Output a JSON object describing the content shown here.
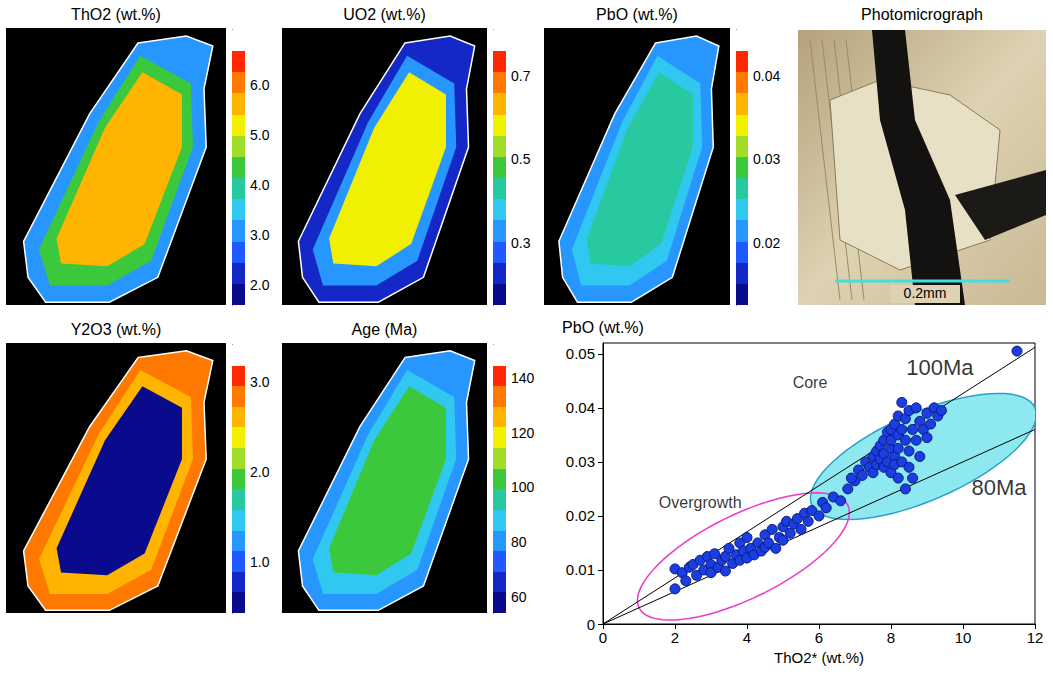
{
  "chart_data": [
    {
      "type": "map",
      "title": "ThO2 (wt.%)",
      "range": [
        1.6,
        7.1
      ],
      "ticks": [
        {
          "value": 2,
          "label": "2.0"
        },
        {
          "value": 3,
          "label": "3.0"
        },
        {
          "value": 4,
          "label": "4.0"
        },
        {
          "value": 5,
          "label": "5.0"
        },
        {
          "value": 6,
          "label": "6.0"
        }
      ],
      "zones": [
        3.0,
        4.2,
        5.6
      ]
    },
    {
      "type": "map",
      "title": "UO2 (wt.%)",
      "range": [
        0.15,
        0.81
      ],
      "ticks": [
        0.3,
        0.5,
        0.7
      ],
      "zones": [
        0.22,
        0.33,
        0.6
      ]
    },
    {
      "type": "map",
      "title": "PbO (wt.%)",
      "range": [
        0.0125,
        0.0455
      ],
      "ticks": [
        0.02,
        0.03,
        0.04
      ],
      "zones": [
        0.021,
        0.024,
        0.027
      ]
    },
    {
      "type": "image",
      "title": "Photomicrograph",
      "scale_label": "0.2mm"
    },
    {
      "type": "map",
      "title": "Y2O3 (wt.%)",
      "range": [
        0.43,
        3.41
      ],
      "ticks": [
        {
          "value": 1,
          "label": "1.0"
        },
        {
          "value": 2,
          "label": "2.0"
        },
        {
          "value": 3,
          "label": "3.0"
        }
      ],
      "zones": [
        2.8,
        2.6,
        0.6
      ]
    },
    {
      "type": "map",
      "title": "Age (Ma)",
      "range": [
        54,
        152
      ],
      "ticks": [
        60,
        80,
        100,
        120,
        140
      ],
      "zones": [
        80,
        90,
        105
      ]
    },
    {
      "type": "scatter",
      "xlabel": "ThO2* (wt.%)",
      "ylabel": "PbO (wt.%)",
      "xlim": [
        0,
        12
      ],
      "xticks": [
        0,
        2,
        4,
        6,
        8,
        10,
        12
      ],
      "ylim": [
        0,
        0.052
      ],
      "yticks": [
        0,
        0.01,
        0.02,
        0.03,
        0.04,
        0.05
      ],
      "grid": false,
      "series": [
        {
          "color": "#1a3ee0",
          "marker": "circle",
          "values": [
            [
              2.0,
              0.0102
            ],
            [
              2.0,
              0.0065
            ],
            [
              2.2,
              0.0095
            ],
            [
              2.3,
              0.008
            ],
            [
              2.4,
              0.0105
            ],
            [
              2.5,
              0.011
            ],
            [
              2.6,
              0.009
            ],
            [
              2.7,
              0.0118
            ],
            [
              2.8,
              0.01
            ],
            [
              2.9,
              0.0125
            ],
            [
              3.0,
              0.011
            ],
            [
              3.0,
              0.0095
            ],
            [
              3.1,
              0.013
            ],
            [
              3.2,
              0.0105
            ],
            [
              3.3,
              0.0118
            ],
            [
              3.4,
              0.0125
            ],
            [
              3.4,
              0.0098
            ],
            [
              3.5,
              0.014
            ],
            [
              3.6,
              0.0112
            ],
            [
              3.7,
              0.0128
            ],
            [
              3.8,
              0.015
            ],
            [
              3.8,
              0.0118
            ],
            [
              3.9,
              0.0135
            ],
            [
              4.0,
              0.0122
            ],
            [
              4.0,
              0.016
            ],
            [
              4.1,
              0.014
            ],
            [
              4.2,
              0.0128
            ],
            [
              4.3,
              0.015
            ],
            [
              4.4,
              0.0135
            ],
            [
              4.5,
              0.0165
            ],
            [
              4.5,
              0.0142
            ],
            [
              4.6,
              0.015
            ],
            [
              4.7,
              0.0175
            ],
            [
              4.8,
              0.014
            ],
            [
              4.9,
              0.016
            ],
            [
              5.0,
              0.018
            ],
            [
              5.0,
              0.0155
            ],
            [
              5.1,
              0.019
            ],
            [
              5.2,
              0.0168
            ],
            [
              5.3,
              0.0185
            ],
            [
              5.4,
              0.0195
            ],
            [
              5.5,
              0.0175
            ],
            [
              5.6,
              0.0205
            ],
            [
              5.7,
              0.019
            ],
            [
              5.8,
              0.021
            ],
            [
              6.0,
              0.02
            ],
            [
              6.1,
              0.0225
            ],
            [
              6.2,
              0.0215
            ],
            [
              6.4,
              0.0235
            ],
            [
              6.6,
              0.0228
            ],
            [
              6.8,
              0.025
            ],
            [
              7.0,
              0.0265
            ],
            [
              6.9,
              0.027
            ],
            [
              7.1,
              0.0285
            ],
            [
              7.2,
              0.0275
            ],
            [
              7.3,
              0.03
            ],
            [
              7.4,
              0.029
            ],
            [
              7.5,
              0.031
            ],
            [
              7.5,
              0.028
            ],
            [
              7.6,
              0.032
            ],
            [
              7.6,
              0.0295
            ],
            [
              7.7,
              0.0305
            ],
            [
              7.7,
              0.033
            ],
            [
              7.8,
              0.029
            ],
            [
              7.8,
              0.034
            ],
            [
              7.8,
              0.0315
            ],
            [
              7.9,
              0.03
            ],
            [
              7.9,
              0.0355
            ],
            [
              8.0,
              0.0325
            ],
            [
              8.0,
              0.028
            ],
            [
              8.0,
              0.036
            ],
            [
              8.0,
              0.034
            ],
            [
              8.1,
              0.031
            ],
            [
              8.1,
              0.037
            ],
            [
              8.1,
              0.0295
            ],
            [
              8.2,
              0.035
            ],
            [
              8.2,
              0.0325
            ],
            [
              8.2,
              0.0385
            ],
            [
              8.2,
              0.027
            ],
            [
              8.3,
              0.036
            ],
            [
              8.3,
              0.03
            ],
            [
              8.3,
              0.041
            ],
            [
              8.4,
              0.034
            ],
            [
              8.4,
              0.038
            ],
            [
              8.4,
              0.025
            ],
            [
              8.5,
              0.032
            ],
            [
              8.5,
              0.0395
            ],
            [
              8.5,
              0.029
            ],
            [
              8.6,
              0.036
            ],
            [
              8.6,
              0.027
            ],
            [
              8.7,
              0.04
            ],
            [
              8.7,
              0.034
            ],
            [
              8.8,
              0.0375
            ],
            [
              8.8,
              0.031
            ],
            [
              8.9,
              0.036
            ],
            [
              9.0,
              0.039
            ],
            [
              9.0,
              0.0345
            ],
            [
              9.1,
              0.037
            ],
            [
              9.2,
              0.04
            ],
            [
              9.3,
              0.0385
            ],
            [
              9.4,
              0.0395
            ],
            [
              11.5,
              0.0505
            ]
          ]
        }
      ],
      "lines": [
        {
          "label": "100Ma",
          "color": "#000000",
          "line_style": "solid",
          "values": [
            [
              0,
              0
            ],
            [
              12,
              0.0512
            ]
          ],
          "label_at": [
            9.36,
            0.0474
          ]
        },
        {
          "label": "80Ma",
          "color": "#000000",
          "line_style": "solid",
          "values": [
            [
              0,
              0
            ],
            [
              12,
              0.036
            ]
          ],
          "label_at": [
            11.0,
            0.0252
          ]
        }
      ],
      "regions": [
        {
          "label": "Core",
          "type": "filled_ellipse",
          "color": "#8ee8ef",
          "major": [
            [
              5.8,
              0.022
            ],
            [
              12.0,
              0.04
            ]
          ],
          "label_at": [
            5.75,
            0.0446
          ]
        },
        {
          "label": "Overgrowth",
          "type": "ellipse",
          "color": "#e83cc8",
          "major": [
            [
              1.0,
              0.003
            ],
            [
              6.8,
              0.022
            ]
          ],
          "label_at": [
            2.7,
            0.0224
          ]
        }
      ]
    }
  ]
}
